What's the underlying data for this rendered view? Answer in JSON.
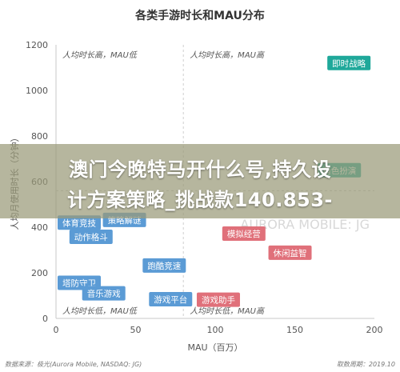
{
  "chart_data": {
    "type": "scatter",
    "title": "各类手游时长和MAU分布",
    "xlabel": "MAU（百万）",
    "ylabel": "人均月使用时长（分钟）",
    "xlim": [
      0,
      200
    ],
    "ylim": [
      0,
      1200
    ],
    "xticks": [
      "0",
      "50",
      "100",
      "150",
      "200"
    ],
    "yticks": [
      "0",
      "200",
      "400",
      "600",
      "800",
      "1000",
      "1200"
    ],
    "divider_x": 80,
    "divider_y": 560,
    "quadrants": {
      "top_left": "人均时长高，MAU低",
      "top_right": "人均时长高，MAU高",
      "bottom_left": "人均时长低，MAU低",
      "bottom_right": "人均时长低，MAU高"
    },
    "points": [
      {
        "label": "即时战略",
        "x": 184,
        "y": 1120,
        "color": "#1fa89a"
      },
      {
        "label": "角色扮演",
        "x": 178,
        "y": 650,
        "color": "#1fa89a"
      },
      {
        "label": "体育竞技",
        "x": 7,
        "y": 420,
        "color": "#5b9bd5"
      },
      {
        "label": "策略解谜",
        "x": 43,
        "y": 432,
        "color": "#5b9bd5"
      },
      {
        "label": "动作格斗",
        "x": 22,
        "y": 358,
        "color": "#5b9bd5"
      },
      {
        "label": "跑酷竞速",
        "x": 68,
        "y": 232,
        "color": "#5b9bd5"
      },
      {
        "label": "塔防守卫",
        "x": 13,
        "y": 156,
        "color": "#5b9bd5"
      },
      {
        "label": "音乐游戏",
        "x": 30,
        "y": 110,
        "color": "#5b9bd5"
      },
      {
        "label": "游戏平台",
        "x": 72,
        "y": 84,
        "color": "#5b9bd5"
      },
      {
        "label": "游戏助手",
        "x": 102,
        "y": 82,
        "color": "#e0707a"
      },
      {
        "label": "模拟经营",
        "x": 118,
        "y": 372,
        "color": "#e0707a"
      },
      {
        "label": "休闲益智",
        "x": 147,
        "y": 288,
        "color": "#e0707a"
      }
    ],
    "grid": false,
    "source": "数据来源：极光(Aurora Mobile, NASDAQ: JG)",
    "date": "取数周期：2019.10"
  },
  "overlay": {
    "line1": "澳门今晚特马开什么号,持久设",
    "line2": "计方案策略_挑战款140.853-"
  },
  "watermark": "AURORA MOBILE: JG",
  "colors": {
    "axis": "#c8c8c8",
    "divider": "#cfcfcf",
    "tick_text": "#555555",
    "title_text": "#333333",
    "quadrant_text": "#555555",
    "watermark": "#d8d8d8"
  }
}
